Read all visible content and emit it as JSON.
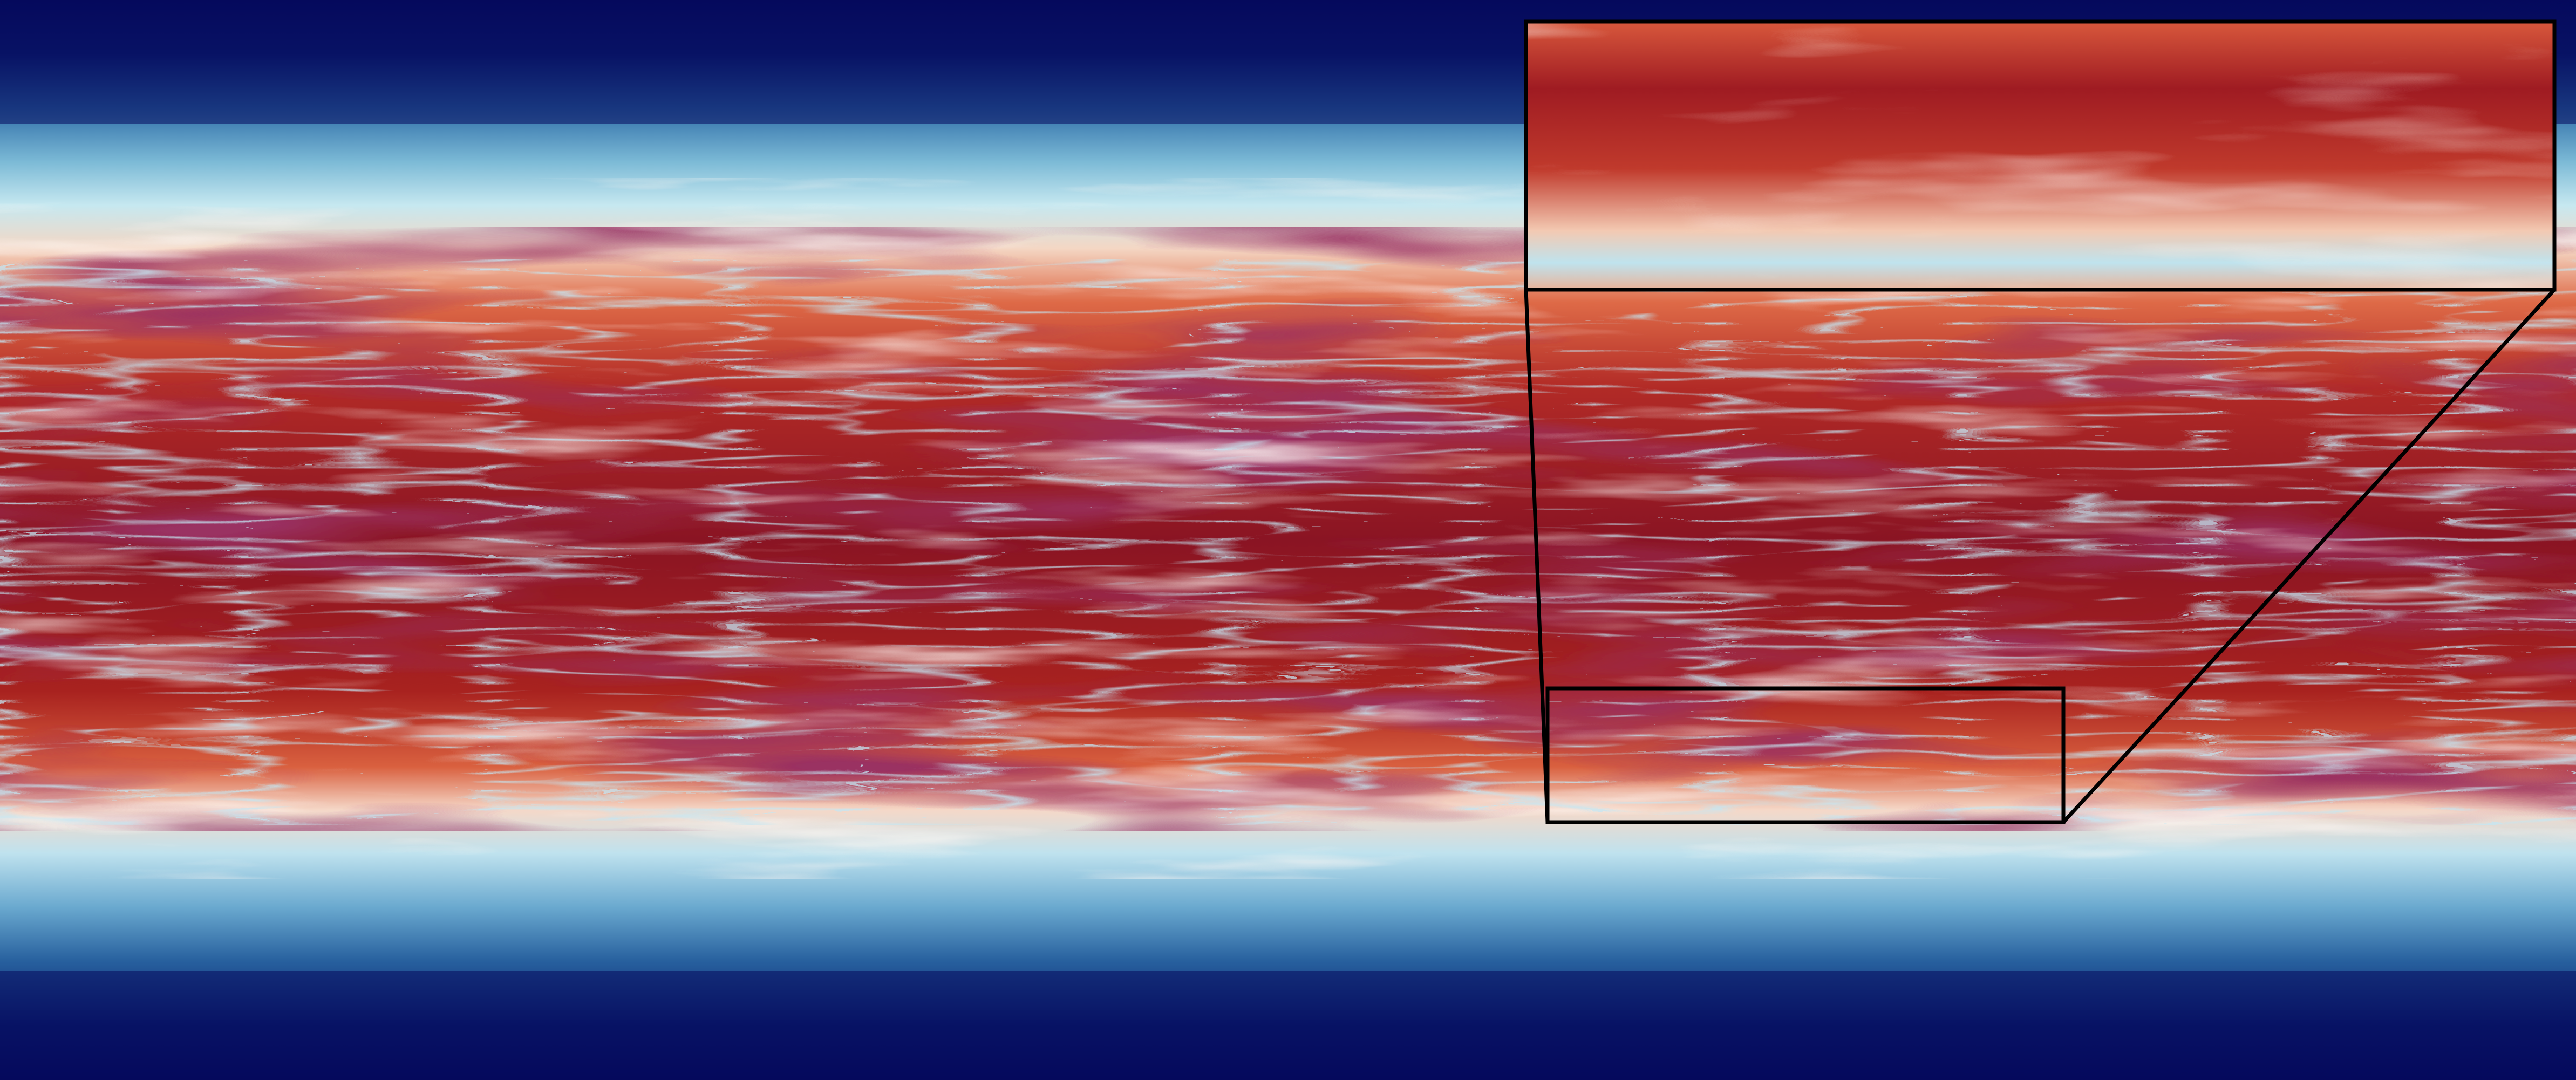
{
  "figure": {
    "colormap": {
      "name": "RdBu_r",
      "stops": [
        "#08105e",
        "#1f4f96",
        "#5d9fc6",
        "#bfe3ee",
        "#f6e8dd",
        "#f2b08e",
        "#d8583c",
        "#a31d22",
        "#5b0c24"
      ]
    },
    "field": {
      "orientation": "horizontal",
      "description_of_layers": "cold-edges-warm-core"
    },
    "inset": {
      "frame_color": "#000000"
    }
  }
}
